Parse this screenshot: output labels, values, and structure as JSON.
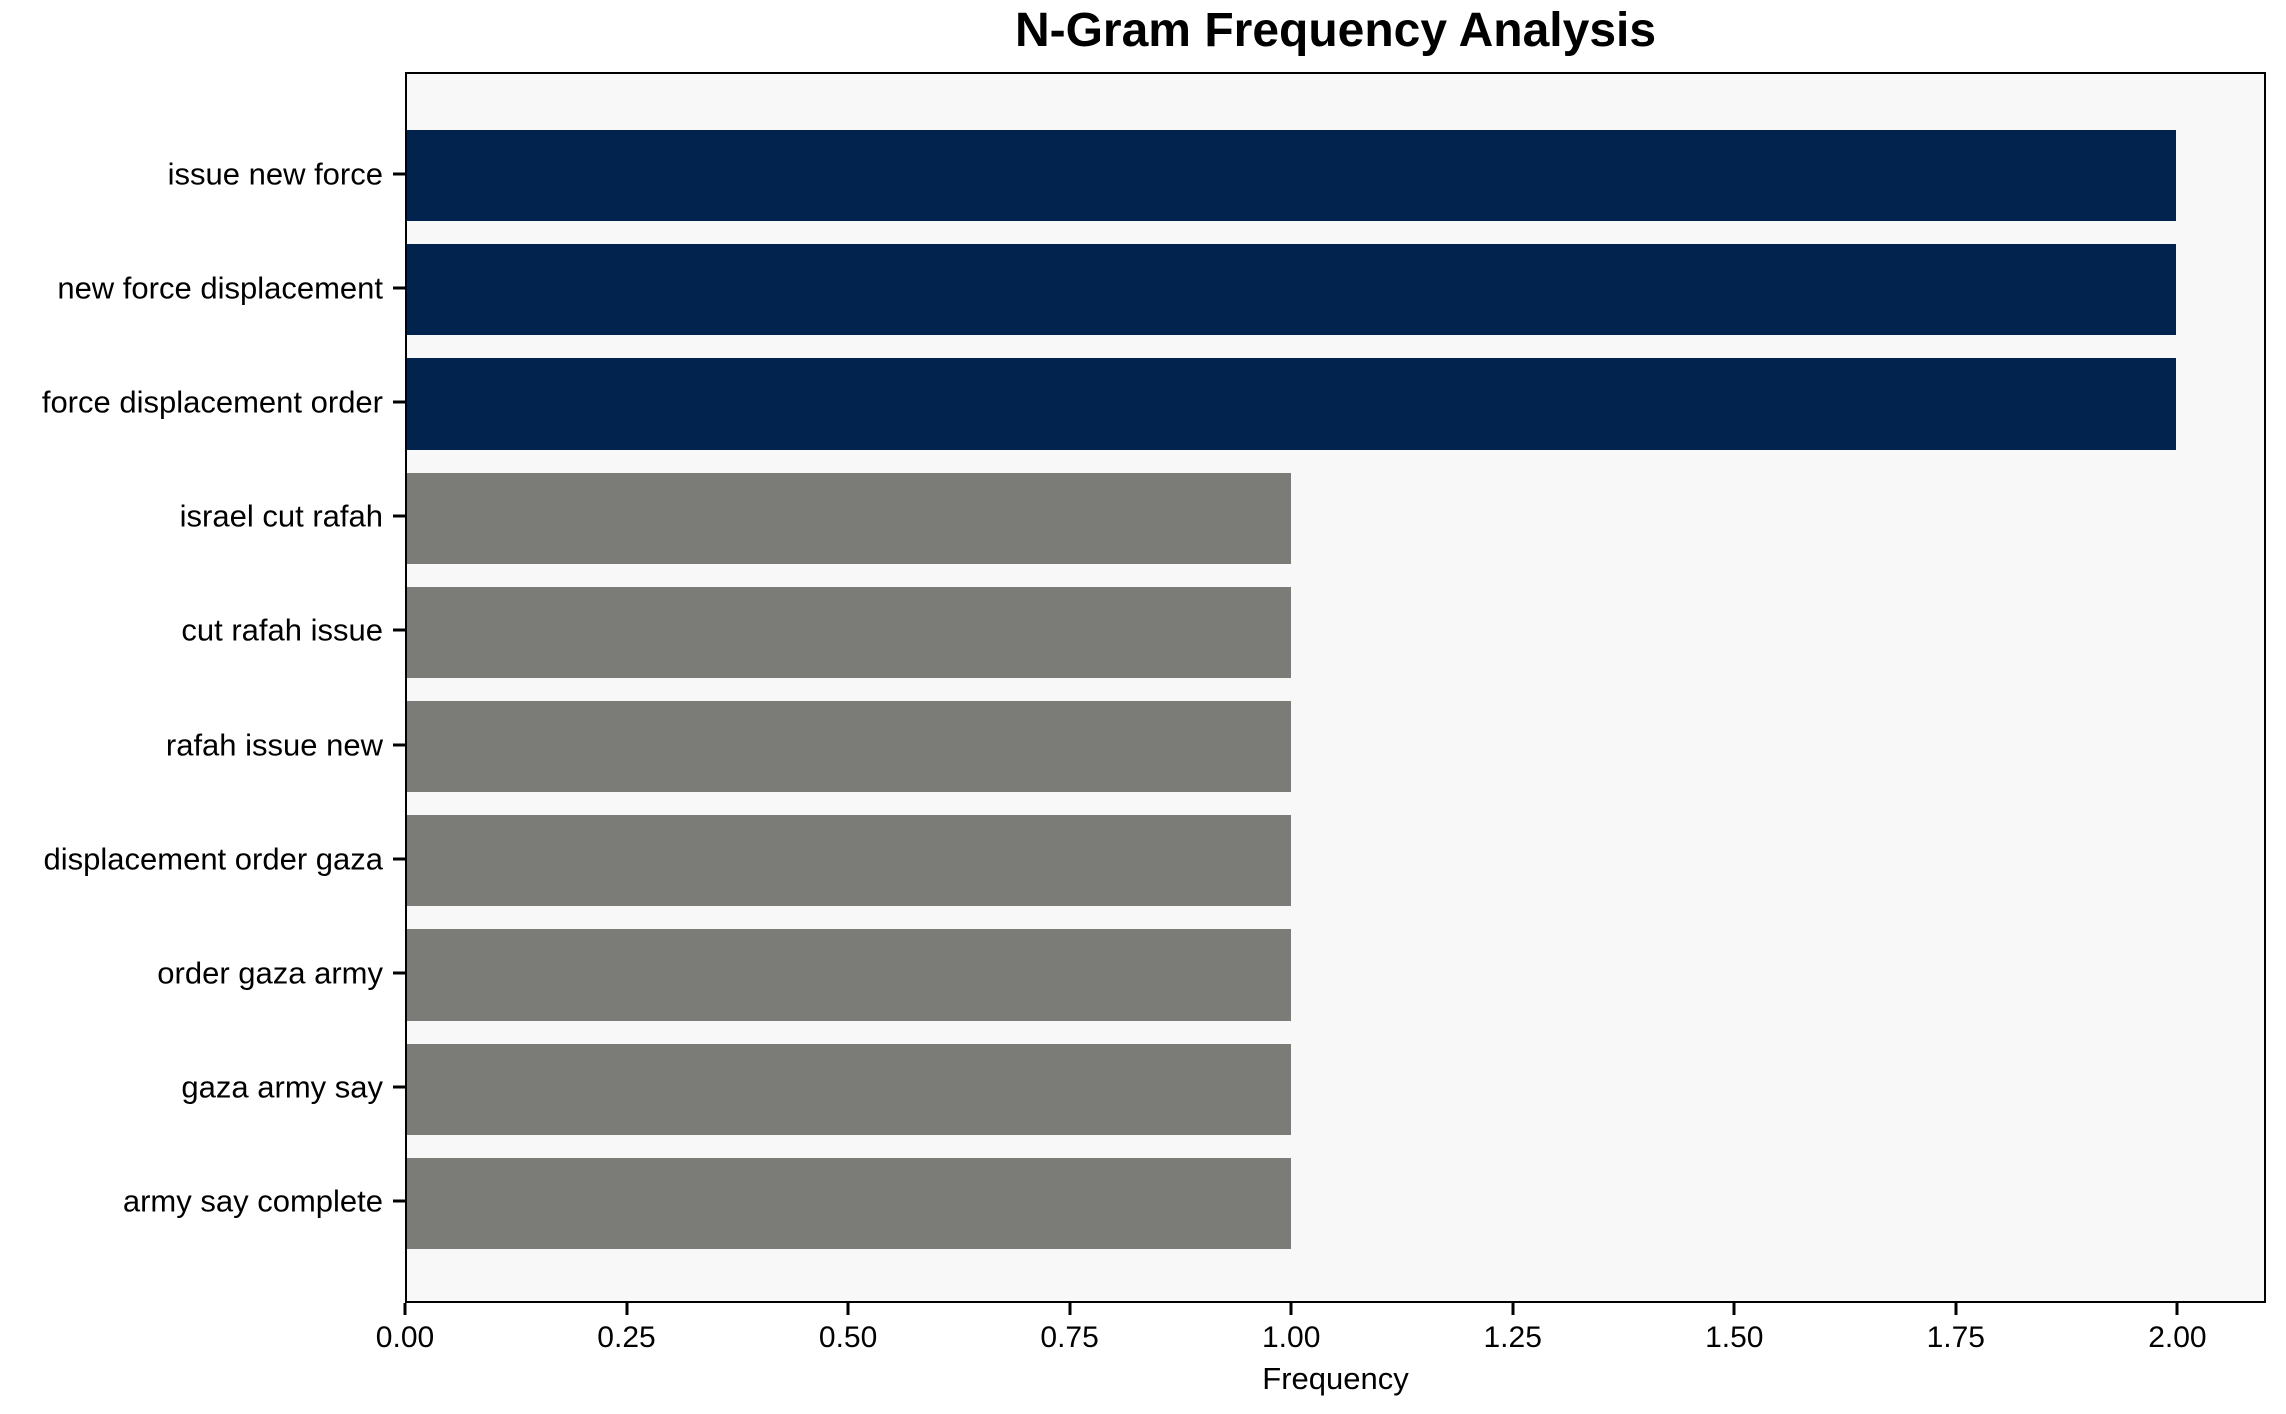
{
  "chart_data": {
    "type": "bar",
    "orientation": "horizontal",
    "title": "N-Gram Frequency Analysis",
    "xlabel": "Frequency",
    "ylabel": "",
    "categories": [
      "issue new force",
      "new force displacement",
      "force displacement order",
      "israel cut rafah",
      "cut rafah issue",
      "rafah issue new",
      "displacement order gaza",
      "order gaza army",
      "gaza army say",
      "army say complete"
    ],
    "values": [
      2,
      2,
      2,
      1,
      1,
      1,
      1,
      1,
      1,
      1
    ],
    "bar_colors": [
      "#01234e",
      "#01234e",
      "#01234e",
      "#7b7b77",
      "#7b7b77",
      "#7b7b77",
      "#7b7b77",
      "#7b7b77",
      "#7b7b77",
      "#7b7b77"
    ],
    "xlim": [
      0,
      2.1
    ],
    "x_ticks": [
      0,
      0.25,
      0.5,
      0.75,
      1.0,
      1.25,
      1.5,
      1.75,
      2.0
    ],
    "x_tick_labels": [
      "0.00",
      "0.25",
      "0.50",
      "0.75",
      "1.00",
      "1.25",
      "1.50",
      "1.75",
      "2.00"
    ],
    "grid": false,
    "legend": false,
    "colors": {
      "highlight_bar": "#01234e",
      "default_bar": "#7b7b77",
      "plot_background": "#f8f8f8",
      "figure_background": "#ffffff",
      "spine": "#000000",
      "text": "#000000"
    }
  }
}
